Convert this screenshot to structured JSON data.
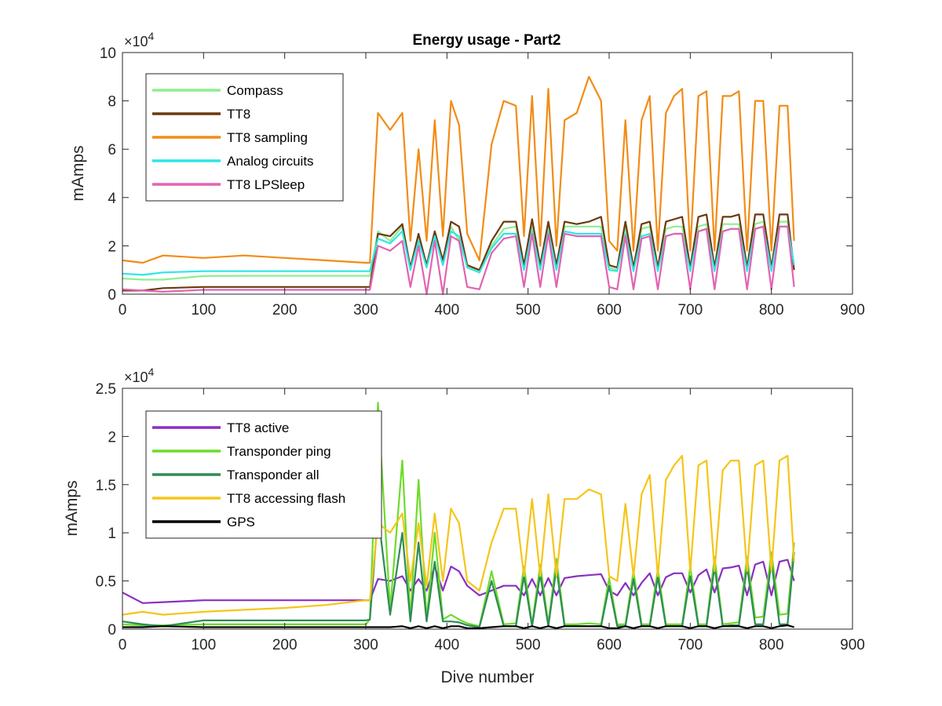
{
  "figure": {
    "title": "Energy usage - Part2",
    "xlabel": "Dive number"
  },
  "chart_data": [
    {
      "type": "line",
      "title": "Energy usage - Part2",
      "xlabel": "",
      "ylabel": "mAmps",
      "xlim": [
        0,
        900
      ],
      "ylim": [
        0,
        100000
      ],
      "x_ticks": [
        "0",
        "100",
        "200",
        "300",
        "400",
        "500",
        "600",
        "700",
        "800",
        "900"
      ],
      "y_ticks": [
        "0",
        "2",
        "4",
        "6",
        "8",
        "10"
      ],
      "y_multiplier": "×10",
      "y_multiplier_exponent": "4",
      "grid": false,
      "legend_position": "top-left",
      "x": [
        0,
        25,
        50,
        100,
        150,
        200,
        250,
        300,
        305,
        315,
        330,
        345,
        355,
        365,
        375,
        385,
        395,
        405,
        415,
        425,
        440,
        455,
        470,
        485,
        495,
        505,
        515,
        525,
        535,
        545,
        560,
        575,
        590,
        600,
        610,
        620,
        630,
        640,
        650,
        660,
        670,
        680,
        690,
        700,
        710,
        720,
        730,
        740,
        750,
        760,
        770,
        780,
        790,
        800,
        810,
        820,
        828
      ],
      "series": [
        {
          "name": "Compass",
          "color": "#8fee8f",
          "values": [
            6500,
            6000,
            6000,
            7500,
            7600,
            7600,
            7600,
            7600,
            7600,
            26000,
            22000,
            28000,
            10000,
            24000,
            12000,
            26000,
            14000,
            28000,
            22000,
            12000,
            9000,
            20000,
            27000,
            28000,
            11000,
            28000,
            11000,
            28000,
            11000,
            28000,
            28000,
            28000,
            28000,
            11000,
            10000,
            28000,
            10000,
            27000,
            28000,
            10000,
            27000,
            28000,
            28000,
            10000,
            28000,
            29000,
            10000,
            29000,
            29000,
            29000,
            10000,
            29000,
            30000,
            10000,
            30000,
            30000,
            10000
          ]
        },
        {
          "name": "TT8",
          "color": "#6b3a0e",
          "values": [
            1500,
            1500,
            2500,
            3000,
            3000,
            3000,
            3000,
            3000,
            3000,
            25000,
            24000,
            29000,
            11000,
            25000,
            12000,
            26000,
            14000,
            30000,
            28000,
            12000,
            10000,
            22000,
            30000,
            30000,
            12000,
            31000,
            12000,
            30000,
            12000,
            30000,
            29000,
            30000,
            32000,
            12000,
            11000,
            30000,
            11000,
            29000,
            30000,
            11000,
            30000,
            31000,
            32000,
            11000,
            32000,
            33000,
            11000,
            32000,
            32000,
            33000,
            11000,
            33000,
            33000,
            11000,
            33000,
            33000,
            10000
          ]
        },
        {
          "name": "TT8 sampling",
          "color": "#f28c16",
          "values": [
            14000,
            13000,
            16000,
            15000,
            16000,
            15000,
            14000,
            13000,
            13000,
            75000,
            68000,
            75000,
            22000,
            60000,
            22000,
            72000,
            24000,
            80000,
            70000,
            25000,
            14000,
            62000,
            80000,
            78000,
            24000,
            82000,
            20000,
            85000,
            20000,
            72000,
            75000,
            90000,
            80000,
            22000,
            18000,
            72000,
            18000,
            72000,
            82000,
            18000,
            75000,
            82000,
            85000,
            18000,
            82000,
            84000,
            18000,
            82000,
            82000,
            84000,
            18000,
            80000,
            80000,
            18000,
            78000,
            78000,
            22000
          ]
        },
        {
          "name": "Analog circuits",
          "color": "#2fe6e6",
          "values": [
            8500,
            8000,
            9000,
            9500,
            9500,
            9500,
            9500,
            9500,
            9500,
            23000,
            21000,
            26000,
            10000,
            22000,
            11000,
            24000,
            12000,
            26000,
            24000,
            11000,
            9000,
            19000,
            25000,
            25000,
            10000,
            26000,
            10000,
            26000,
            10000,
            26000,
            25000,
            25000,
            25000,
            10000,
            9500,
            25000,
            9500,
            24000,
            25000,
            9500,
            24000,
            25000,
            25000,
            9500,
            26000,
            27000,
            9500,
            26000,
            27000,
            27000,
            9500,
            27000,
            28000,
            9500,
            28000,
            28000,
            12000
          ]
        },
        {
          "name": "TT8 LPSleep",
          "color": "#e362b2",
          "values": [
            2000,
            1500,
            1000,
            1800,
            1800,
            1800,
            1800,
            1800,
            1800,
            20000,
            18000,
            22000,
            3000,
            20000,
            0,
            22000,
            0,
            24000,
            22000,
            3000,
            2000,
            17000,
            23000,
            24000,
            3000,
            25000,
            3000,
            25000,
            3000,
            25000,
            24000,
            24000,
            24000,
            3000,
            2000,
            24000,
            2000,
            23000,
            24000,
            2000,
            24000,
            25000,
            25000,
            2000,
            26000,
            27000,
            2000,
            26000,
            27000,
            27000,
            2000,
            27000,
            28000,
            2000,
            28000,
            28000,
            3000
          ]
        }
      ]
    },
    {
      "type": "line",
      "title": "",
      "xlabel": "Dive number",
      "ylabel": "mAmps",
      "xlim": [
        0,
        900
      ],
      "ylim": [
        0,
        25000
      ],
      "x_ticks": [
        "0",
        "100",
        "200",
        "300",
        "400",
        "500",
        "600",
        "700",
        "800",
        "900"
      ],
      "y_ticks": [
        "0",
        "0.5",
        "1",
        "1.5",
        "2",
        "2.5"
      ],
      "y_multiplier": "×10",
      "y_multiplier_exponent": "4",
      "grid": false,
      "legend_position": "top-left",
      "x": [
        0,
        25,
        50,
        100,
        150,
        200,
        250,
        300,
        305,
        315,
        330,
        345,
        355,
        365,
        375,
        385,
        395,
        405,
        415,
        425,
        440,
        455,
        470,
        485,
        495,
        505,
        515,
        525,
        535,
        545,
        560,
        575,
        590,
        600,
        610,
        620,
        630,
        640,
        650,
        660,
        670,
        680,
        690,
        700,
        710,
        720,
        730,
        740,
        750,
        760,
        770,
        780,
        790,
        800,
        810,
        820,
        828
      ],
      "series": [
        {
          "name": "TT8 active",
          "color": "#8a30c0",
          "values": [
            3800,
            2700,
            2800,
            3000,
            3000,
            3000,
            3000,
            3000,
            3000,
            5200,
            5000,
            5500,
            4000,
            5200,
            4000,
            6500,
            4000,
            6500,
            6000,
            4500,
            3500,
            4000,
            4500,
            4500,
            3500,
            5200,
            3500,
            5300,
            3500,
            5300,
            5500,
            5600,
            5700,
            4000,
            3500,
            4800,
            3500,
            4800,
            5800,
            3500,
            5400,
            5800,
            5800,
            3800,
            5600,
            6200,
            3800,
            6300,
            6400,
            6600,
            3500,
            6700,
            7000,
            3500,
            7000,
            7200,
            5000
          ]
        },
        {
          "name": "Transponder ping",
          "color": "#6edb2b",
          "values": [
            500,
            400,
            400,
            500,
            500,
            500,
            500,
            500,
            1000,
            23500,
            2000,
            17500,
            1000,
            15500,
            1000,
            10000,
            1000,
            1500,
            1000,
            600,
            300,
            6000,
            500,
            600,
            6500,
            500,
            6700,
            600,
            7300,
            500,
            500,
            600,
            500,
            5300,
            500,
            500,
            6000,
            500,
            500,
            6200,
            500,
            500,
            500,
            6500,
            500,
            500,
            7500,
            500,
            600,
            700,
            7500,
            1200,
            1300,
            8000,
            1500,
            1600,
            9000
          ]
        },
        {
          "name": "Transponder all",
          "color": "#2e8b57",
          "values": [
            800,
            500,
            300,
            900,
            900,
            900,
            900,
            900,
            1000,
            12000,
            1500,
            10000,
            800,
            9000,
            800,
            7000,
            800,
            800,
            700,
            400,
            200,
            5000,
            300,
            300,
            5500,
            300,
            5700,
            300,
            6300,
            300,
            300,
            300,
            300,
            4500,
            300,
            300,
            5200,
            300,
            300,
            5400,
            300,
            300,
            300,
            5500,
            300,
            300,
            6500,
            300,
            400,
            400,
            6500,
            500,
            500,
            7000,
            500,
            500,
            8000
          ]
        },
        {
          "name": "TT8 accessing flash",
          "color": "#f5c518",
          "values": [
            1500,
            1800,
            1500,
            1800,
            2000,
            2200,
            2500,
            3000,
            3000,
            11000,
            10000,
            12000,
            5000,
            11000,
            4500,
            12000,
            5000,
            12500,
            11000,
            5000,
            4000,
            9000,
            12500,
            12500,
            5500,
            13500,
            5500,
            14000,
            5500,
            13500,
            13500,
            14500,
            14000,
            5500,
            5000,
            13000,
            5500,
            14000,
            16000,
            5500,
            15500,
            17000,
            18000,
            6000,
            17000,
            17500,
            6000,
            16500,
            17500,
            17500,
            6000,
            17000,
            17500,
            6000,
            17500,
            18000,
            7000
          ]
        },
        {
          "name": "GPS",
          "color": "#000000",
          "values": [
            200,
            200,
            300,
            200,
            200,
            200,
            200,
            200,
            200,
            200,
            200,
            300,
            100,
            300,
            100,
            300,
            100,
            300,
            300,
            100,
            100,
            200,
            300,
            300,
            100,
            300,
            100,
            300,
            100,
            300,
            300,
            300,
            300,
            100,
            100,
            300,
            100,
            300,
            300,
            100,
            300,
            300,
            300,
            100,
            300,
            300,
            100,
            300,
            300,
            300,
            100,
            300,
            300,
            100,
            300,
            400,
            200
          ]
        }
      ]
    }
  ]
}
